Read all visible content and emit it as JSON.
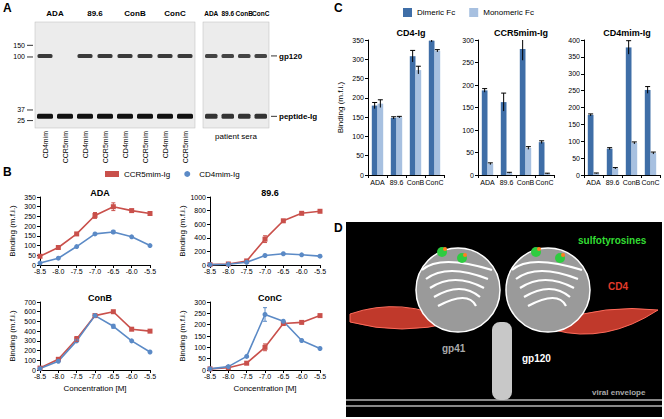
{
  "panel_labels": [
    "A",
    "B",
    "C",
    "D"
  ],
  "gel": {
    "left": {
      "markers": [
        150,
        100,
        37,
        25
      ],
      "groups": [
        {
          "label": "ADA",
          "lanes": [
            {
              "label": "CD4mim",
              "gp120": true
            },
            {
              "label": "CCR5mim",
              "gp120": false
            }
          ]
        },
        {
          "label": "89.6",
          "lanes": [
            {
              "label": "CD4mim",
              "gp120": true
            },
            {
              "label": "CCR5mim",
              "gp120": true
            }
          ]
        },
        {
          "label": "ConB",
          "lanes": [
            {
              "label": "CD4mim",
              "gp120": true
            },
            {
              "label": "CCR5mim",
              "gp120": true
            }
          ]
        },
        {
          "label": "ConC",
          "lanes": [
            {
              "label": "CD4mim",
              "gp120": true
            },
            {
              "label": "CCR5mim",
              "gp120": true
            }
          ]
        }
      ]
    },
    "right": {
      "lanes": [
        "ADA",
        "89.6",
        "ConB",
        "ConC"
      ],
      "caption": "patient sera"
    },
    "bands": [
      "gp120",
      "peptide-Ig"
    ]
  },
  "structure": {
    "labels": [
      "sulfotyrosines",
      "CD4",
      "gp120",
      "gp41",
      "viral envelope"
    ]
  },
  "chart_data": [
    {
      "type": "line",
      "panel": "B",
      "title": "ADA",
      "x": [
        -8.5,
        -8,
        -7.5,
        -7,
        -6.5,
        -6,
        -5.5
      ],
      "xlim": [
        -8.5,
        -5.5
      ],
      "xticks": [
        -8.5,
        {
          "value": -8,
          "label": "-8.0"
        },
        -7.5,
        {
          "value": -7,
          "label": "-7.0"
        },
        -6.5,
        {
          "value": -6,
          "label": "-6.0"
        },
        -5.5
      ],
      "ylim": [
        0,
        350
      ],
      "yticks": [
        0,
        50,
        100,
        150,
        200,
        250,
        300,
        350
      ],
      "y_label": "Binding (m.f.i.)",
      "grid": false,
      "legend": "top",
      "series": [
        {
          "name": "CCR5mim-Ig",
          "color": "#c9504b",
          "marker": "square",
          "values": [
            45,
            90,
            160,
            255,
            300,
            280,
            265
          ],
          "errors": [
            null,
            null,
            null,
            15,
            20,
            null,
            null
          ]
        },
        {
          "name": "CD4mim-Ig",
          "color": "#5b8ac6",
          "marker": "circle",
          "values": [
            10,
            35,
            95,
            160,
            170,
            145,
            100
          ],
          "errors": [
            null,
            null,
            null,
            null,
            8,
            null,
            null
          ]
        }
      ]
    },
    {
      "type": "line",
      "panel": "B",
      "title": "89.6",
      "x": [
        -8.5,
        -8,
        -7.5,
        -7,
        -6.5,
        -6,
        -5.5
      ],
      "xlim": [
        -8.5,
        -5.5
      ],
      "xticks": [
        -8.5,
        {
          "value": -8,
          "label": "-8.0"
        },
        -7.5,
        {
          "value": -7,
          "label": "-7.0"
        },
        -6.5,
        {
          "value": -6,
          "label": "-6.0"
        },
        -5.5
      ],
      "ylim": [
        0,
        1000
      ],
      "yticks": [
        0,
        200,
        400,
        600,
        800,
        1000
      ],
      "y_label": "Binding (m.f.i.)",
      "grid": false,
      "series": [
        {
          "name": "CCR5mim-Ig",
          "color": "#c9504b",
          "marker": "square",
          "values": [
            5,
            15,
            60,
            380,
            650,
            760,
            790
          ],
          "errors": [
            null,
            null,
            null,
            50,
            null,
            null,
            null
          ]
        },
        {
          "name": "CD4mim-Ig",
          "color": "#5b8ac6",
          "marker": "circle",
          "values": [
            5,
            10,
            40,
            140,
            165,
            150,
            130
          ],
          "errors": [
            null,
            null,
            null,
            null,
            null,
            null,
            null
          ]
        }
      ]
    },
    {
      "type": "line",
      "panel": "B",
      "title": "ConB",
      "x": [
        -8.5,
        -8,
        -7.5,
        -7,
        -6.5,
        -6,
        -5.5
      ],
      "xlim": [
        -8.5,
        -5.5
      ],
      "xticks": [
        -8.5,
        {
          "value": -8,
          "label": "-8.0"
        },
        -7.5,
        {
          "value": -7,
          "label": "-7.0"
        },
        -6.5,
        {
          "value": -6,
          "label": "-6.0"
        },
        -5.5
      ],
      "ylim": [
        0,
        700
      ],
      "yticks": [
        0,
        100,
        200,
        300,
        400,
        500,
        600,
        700
      ],
      "x_label": "Concentration [M]",
      "y_label": "Binding (m.f.i.)",
      "grid": false,
      "series": [
        {
          "name": "CCR5mim-Ig",
          "color": "#c9504b",
          "marker": "square",
          "values": [
            20,
            110,
            320,
            560,
            600,
            420,
            400
          ],
          "errors": [
            null,
            null,
            25,
            null,
            null,
            null,
            null
          ]
        },
        {
          "name": "CD4mim-Ig",
          "color": "#5b8ac6",
          "marker": "circle",
          "values": [
            15,
            90,
            300,
            560,
            450,
            300,
            185
          ],
          "errors": [
            null,
            null,
            null,
            null,
            20,
            null,
            null
          ]
        }
      ]
    },
    {
      "type": "line",
      "panel": "B",
      "title": "ConC",
      "x": [
        -8.5,
        -8,
        -7.5,
        -7,
        -6.5,
        -6,
        -5.5
      ],
      "xlim": [
        -8.5,
        -5.5
      ],
      "xticks": [
        -8.5,
        {
          "value": -8,
          "label": "-8.0"
        },
        -7.5,
        {
          "value": -7,
          "label": "-7.0"
        },
        -6.5,
        {
          "value": -6,
          "label": "-6.0"
        },
        -5.5
      ],
      "ylim": [
        0,
        300
      ],
      "yticks": [
        0,
        50,
        100,
        150,
        200,
        250,
        300
      ],
      "x_label": "Concentration [M]",
      "y_label": "Binding (m.f.i.)",
      "grid": false,
      "series": [
        {
          "name": "CCR5mim-Ig",
          "color": "#c9504b",
          "marker": "square",
          "values": [
            5,
            10,
            30,
            100,
            205,
            210,
            240
          ],
          "errors": [
            null,
            null,
            null,
            15,
            null,
            null,
            null
          ]
        },
        {
          "name": "CD4mim-Ig",
          "color": "#5b8ac6",
          "marker": "circle",
          "values": [
            5,
            15,
            60,
            245,
            215,
            130,
            95
          ],
          "errors": [
            null,
            null,
            null,
            30,
            null,
            null,
            null
          ]
        }
      ]
    },
    {
      "type": "bar",
      "panel": "C",
      "title": "CD4-Ig",
      "categories": [
        "ADA",
        "89.6",
        "ConB",
        "ConC"
      ],
      "ylim": [
        0,
        350
      ],
      "yticks": [
        0,
        50,
        100,
        150,
        200,
        250,
        300,
        350
      ],
      "y_label": "Binding (m.f.i.)",
      "grid": false,
      "legend": "top",
      "series": [
        {
          "name": "Dimeric Fc",
          "color": "#3f6ea7",
          "values": [
            180,
            148,
            308,
            348
          ],
          "errors": [
            8,
            3,
            15,
            3
          ]
        },
        {
          "name": "Monomeric Fc",
          "color": "#a7c0e0",
          "values": [
            185,
            150,
            272,
            322
          ],
          "errors": [
            10,
            2,
            10,
            3
          ]
        }
      ]
    },
    {
      "type": "bar",
      "panel": "C",
      "title": "CCR5mim-Ig",
      "categories": [
        "ADA",
        "89.6",
        "ConB",
        "ConC"
      ],
      "ylim": [
        0,
        300
      ],
      "yticks": [
        0,
        50,
        100,
        150,
        200,
        250,
        300
      ],
      "grid": false,
      "series": [
        {
          "name": "Dimeric Fc",
          "color": "#3f6ea7",
          "values": [
            188,
            162,
            280,
            73
          ],
          "errors": [
            4,
            20,
            25,
            3
          ]
        },
        {
          "name": "Monomeric Fc",
          "color": "#a7c0e0",
          "values": [
            25,
            5,
            60,
            3
          ],
          "errors": [
            2,
            1,
            3,
            1
          ]
        }
      ]
    },
    {
      "type": "bar",
      "panel": "C",
      "title": "CD4mim-Ig",
      "categories": [
        "ADA",
        "89.6",
        "ConB",
        "ConC"
      ],
      "ylim": [
        0,
        400
      ],
      "yticks": [
        0,
        50,
        100,
        150,
        200,
        250,
        300,
        350,
        400
      ],
      "grid": false,
      "series": [
        {
          "name": "Dimeric Fc",
          "color": "#3f6ea7",
          "values": [
            178,
            78,
            378,
            252
          ],
          "errors": [
            3,
            3,
            20,
            10
          ]
        },
        {
          "name": "Monomeric Fc",
          "color": "#a7c0e0",
          "values": [
            5,
            20,
            95,
            65
          ],
          "errors": [
            1,
            2,
            3,
            3
          ]
        }
      ]
    }
  ]
}
